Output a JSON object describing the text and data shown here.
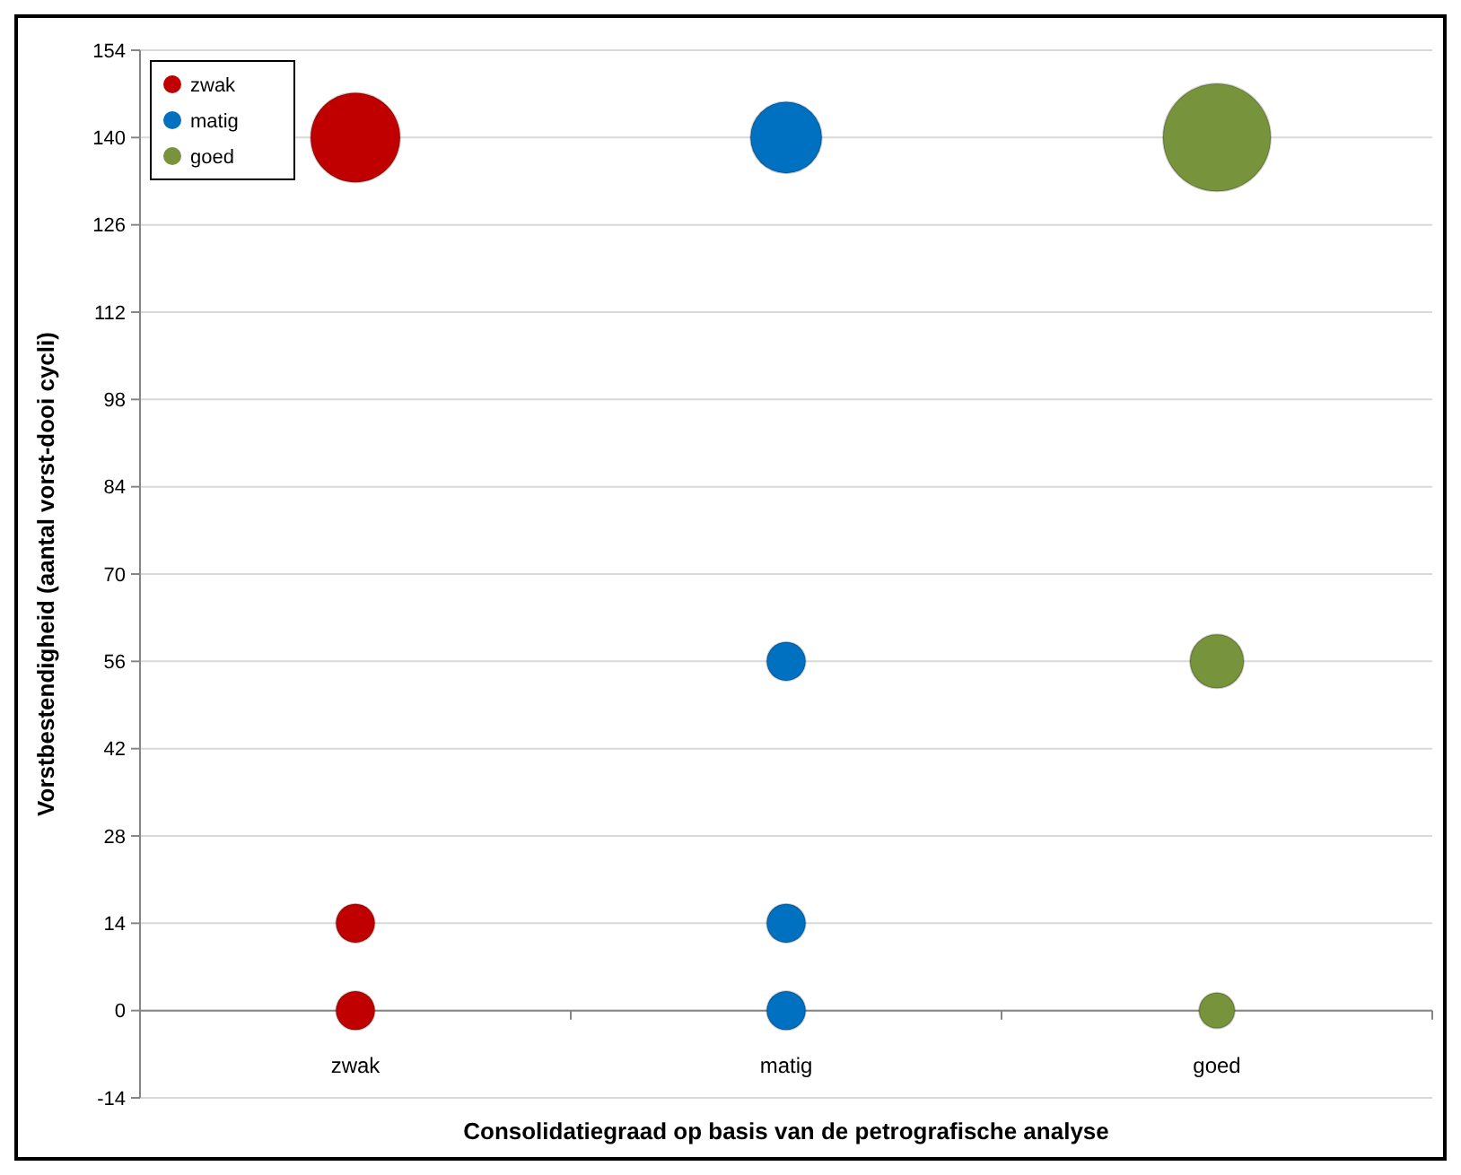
{
  "chart_data": {
    "type": "bubble",
    "xlabel": "Consolidatiegraad op basis van de petrografische analyse",
    "ylabel": "Vorstbestendigheid (aantal vorst-dooi cycli)",
    "categories": [
      "zwak",
      "matig",
      "goed"
    ],
    "ylim": [
      -14,
      154
    ],
    "yticks": [
      -14,
      0,
      14,
      28,
      42,
      56,
      70,
      84,
      98,
      112,
      126,
      140,
      154
    ],
    "grid": "y",
    "legend": "top left",
    "series": [
      {
        "name": "zwak",
        "color": "#c00000",
        "x": [
          "zwak",
          "zwak",
          "zwak"
        ],
        "values": [
          140,
          14,
          0
        ],
        "sizes": [
          0.69,
          0.13,
          0.13
        ]
      },
      {
        "name": "matig",
        "color": "#0070c0",
        "x": [
          "matig",
          "matig",
          "matig",
          "matig"
        ],
        "values": [
          140,
          56,
          14,
          0
        ],
        "sizes": [
          0.44,
          0.13,
          0.13,
          0.13
        ]
      },
      {
        "name": "goed",
        "color": "#77933c",
        "x": [
          "goed",
          "goed",
          "goed"
        ],
        "values": [
          140,
          56,
          0
        ],
        "sizes": [
          1,
          0.25,
          0.11
        ]
      }
    ]
  }
}
